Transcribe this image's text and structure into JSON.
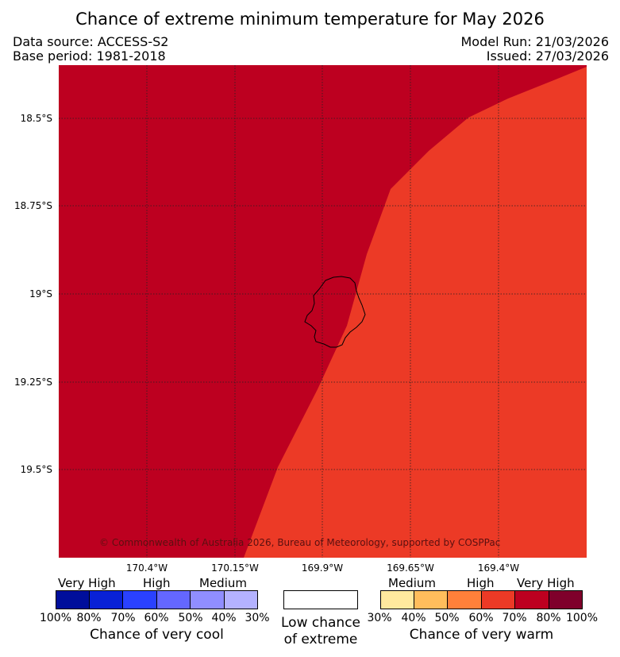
{
  "title": "Chance of extreme minimum temperature for May 2026",
  "header": {
    "data_source": "Data source: ACCESS-S2",
    "base_period": "Base period: 1981-2018",
    "model_run": "Model Run: 21/03/2026",
    "issued": "Issued: 27/03/2026"
  },
  "map": {
    "latitude_labels": [
      "18.5°S",
      "18.75°S",
      "19°S",
      "19.25°S",
      "19.5°S"
    ],
    "longitude_labels": [
      "170.4°W",
      "170.15°W",
      "169.9°W",
      "169.65°W",
      "169.4°W"
    ],
    "colors": {
      "very_high_warm": "#bd0020",
      "high_warm": "#ec3a26",
      "coastline": "#000000"
    },
    "copyright": "© Commonwealth of Australia 2026, Bureau of Meteorology, supported by COSPPac"
  },
  "legend": {
    "cool": {
      "categories": [
        "Very High",
        "High",
        "Medium"
      ],
      "colors": [
        "#000e9b",
        "#0921d6",
        "#2a41ff",
        "#6467ff",
        "#908eff",
        "#b4b2ff"
      ],
      "ticks": [
        "100%",
        "80%",
        "70%",
        "60%",
        "50%",
        "40%",
        "30%"
      ],
      "title": "Chance of very cool"
    },
    "neutral": {
      "color": "#ffffff",
      "title_line1": "Low chance",
      "title_line2": "of extreme"
    },
    "warm": {
      "categories": [
        "Medium",
        "High",
        "Very High"
      ],
      "colors": [
        "#ffe99e",
        "#ffbd5c",
        "#ff803a",
        "#ec3a26",
        "#bd0020",
        "#7f002b"
      ],
      "ticks": [
        "30%",
        "40%",
        "50%",
        "60%",
        "70%",
        "80%",
        "100%"
      ],
      "title": "Chance of very warm"
    }
  }
}
